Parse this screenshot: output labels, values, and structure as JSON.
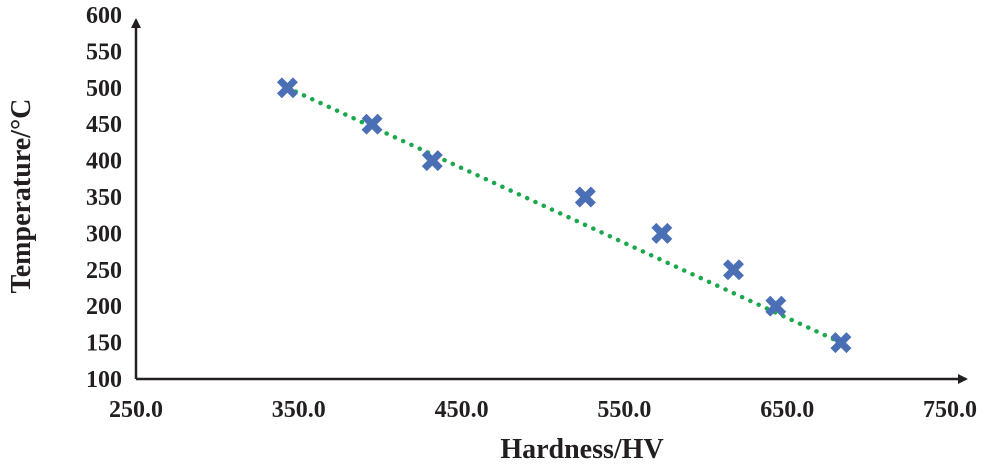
{
  "chart_data": {
    "type": "scatter",
    "title": "",
    "xlabel": "Hardness/HV",
    "ylabel": "Temperature/°C",
    "xlim": [
      250,
      750
    ],
    "ylim": [
      100,
      600
    ],
    "x_ticks": [
      "250.0",
      "350.0",
      "450.0",
      "550.0",
      "650.0",
      "750.0"
    ],
    "y_ticks": [
      "100",
      "150",
      "200",
      "250",
      "300",
      "350",
      "400",
      "450",
      "500",
      "550",
      "600"
    ],
    "grid": false,
    "legend": "none",
    "marker": "x",
    "marker_color": "#4a6fb5",
    "trendline": {
      "style": "dotted",
      "color": "#1aa84c",
      "from": [
        343,
        500
      ],
      "to": [
        683,
        150
      ]
    },
    "series": [
      {
        "points": [
          {
            "x": 343,
            "y": 500
          },
          {
            "x": 395,
            "y": 450
          },
          {
            "x": 432,
            "y": 400
          },
          {
            "x": 526,
            "y": 350
          },
          {
            "x": 573,
            "y": 300
          },
          {
            "x": 617,
            "y": 250
          },
          {
            "x": 643,
            "y": 200
          },
          {
            "x": 683,
            "y": 150
          }
        ]
      }
    ]
  }
}
